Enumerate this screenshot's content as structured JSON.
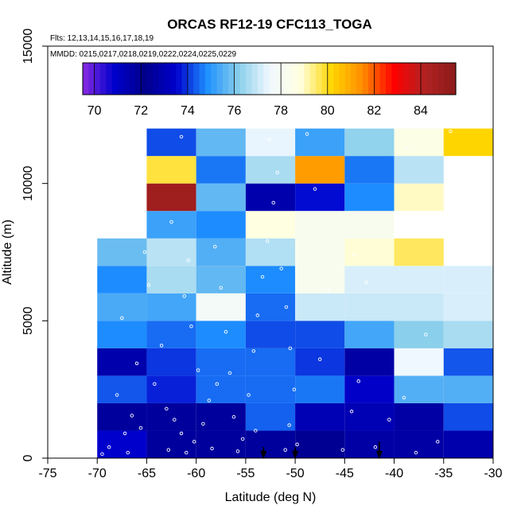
{
  "chart_data": {
    "type": "heatmap",
    "title": "ORCAS RF12-19 CFC113_TOGA",
    "subtitle_flights": "Flts: 12,13,14,15,16,17,18,19",
    "subtitle_dates": "MMDD: 0215,0217,0218,0219,0222,0224,0225,0229",
    "xlabel": "Latitude (deg N)",
    "ylabel": "Altitude (m)",
    "xlim": [
      -75,
      -30
    ],
    "ylim": [
      0,
      15000
    ],
    "x_ticks": [
      -75,
      -70,
      -65,
      -60,
      -55,
      -50,
      -45,
      -40,
      -35,
      -30
    ],
    "y_ticks": [
      0,
      5000,
      10000,
      15000
    ],
    "x_tick_labels": [
      "-75",
      "-70",
      "-65",
      "-60",
      "-55",
      "-50",
      "-45",
      "-40",
      "-35",
      "-30"
    ],
    "y_tick_labels": [
      "0",
      "5000",
      "10000",
      "15000"
    ],
    "colorbar": {
      "range": [
        69.5,
        85.5
      ],
      "ticks": [
        70,
        72,
        74,
        76,
        78,
        80,
        82,
        84
      ],
      "tick_labels": [
        "70",
        "72",
        "74",
        "76",
        "78",
        "80",
        "82",
        "84"
      ],
      "colors": [
        "#8a2be2",
        "#0000cd",
        "#00008b",
        "#0000cd",
        "#1e90ff",
        "#87ceeb",
        "#f0f8ff",
        "#ffffe0",
        "#ffd700",
        "#ff8c00",
        "#ff0000",
        "#b22222",
        "#8b1a1a"
      ]
    },
    "bin_width_deg": 5,
    "bin_height_m": 1000,
    "cells": [
      {
        "lat": -70,
        "alt": 0,
        "value": 73.5
      },
      {
        "lat": -65,
        "alt": 0,
        "value": 71.8
      },
      {
        "lat": -60,
        "alt": 0,
        "value": 71.8
      },
      {
        "lat": -55,
        "alt": 0,
        "value": 71.8
      },
      {
        "lat": -50,
        "alt": 0,
        "value": 72.0
      },
      {
        "lat": -45,
        "alt": 0,
        "value": 72.7
      },
      {
        "lat": -40,
        "alt": 0,
        "value": 72.7
      },
      {
        "lat": -35,
        "alt": 0,
        "value": 71.5
      },
      {
        "lat": -70,
        "alt": 1000,
        "value": 72.5
      },
      {
        "lat": -65,
        "alt": 1000,
        "value": 71.8
      },
      {
        "lat": -60,
        "alt": 1000,
        "value": 72.5
      },
      {
        "lat": -55,
        "alt": 1000,
        "value": 74.4
      },
      {
        "lat": -50,
        "alt": 1000,
        "value": 73.0
      },
      {
        "lat": -45,
        "alt": 1000,
        "value": 73.0
      },
      {
        "lat": -40,
        "alt": 1000,
        "value": 72.7
      },
      {
        "lat": -35,
        "alt": 1000,
        "value": 74.2
      },
      {
        "lat": -70,
        "alt": 2000,
        "value": 74.3
      },
      {
        "lat": -65,
        "alt": 2000,
        "value": 73.8
      },
      {
        "lat": -60,
        "alt": 2000,
        "value": 74.5
      },
      {
        "lat": -55,
        "alt": 2000,
        "value": 74.5
      },
      {
        "lat": -50,
        "alt": 2000,
        "value": 74.6
      },
      {
        "lat": -45,
        "alt": 2000,
        "value": 73.4
      },
      {
        "lat": -40,
        "alt": 2000,
        "value": 75.5
      },
      {
        "lat": -35,
        "alt": 2000,
        "value": 75.5
      },
      {
        "lat": -70,
        "alt": 3000,
        "value": 71.5
      },
      {
        "lat": -65,
        "alt": 3000,
        "value": 74.0
      },
      {
        "lat": -60,
        "alt": 3000,
        "value": 74.5
      },
      {
        "lat": -55,
        "alt": 3000,
        "value": 74.5
      },
      {
        "lat": -50,
        "alt": 3000,
        "value": 74.0
      },
      {
        "lat": -45,
        "alt": 3000,
        "value": 72.7
      },
      {
        "lat": -40,
        "alt": 3000,
        "value": 77.5
      },
      {
        "lat": -35,
        "alt": 3000,
        "value": 74.3
      },
      {
        "lat": -70,
        "alt": 4000,
        "value": 74.8
      },
      {
        "lat": -65,
        "alt": 4000,
        "value": 74.5
      },
      {
        "lat": -60,
        "alt": 4000,
        "value": 74.8
      },
      {
        "lat": -55,
        "alt": 4000,
        "value": 74.2
      },
      {
        "lat": -50,
        "alt": 4000,
        "value": 74.2
      },
      {
        "lat": -45,
        "alt": 4000,
        "value": 75.3
      },
      {
        "lat": -40,
        "alt": 4000,
        "value": 76.2
      },
      {
        "lat": -35,
        "alt": 4000,
        "value": 76.6
      },
      {
        "lat": -70,
        "alt": 5000,
        "value": 75.4
      },
      {
        "lat": -65,
        "alt": 5000,
        "value": 75.3
      },
      {
        "lat": -60,
        "alt": 5000,
        "value": 77.8
      },
      {
        "lat": -55,
        "alt": 5000,
        "value": 74.5
      },
      {
        "lat": -50,
        "alt": 5000,
        "value": 77.0
      },
      {
        "lat": -45,
        "alt": 5000,
        "value": 77.0
      },
      {
        "lat": -40,
        "alt": 5000,
        "value": 77.0
      },
      {
        "lat": -35,
        "alt": 5000,
        "value": 77.2
      },
      {
        "lat": -70,
        "alt": 6000,
        "value": 74.8
      },
      {
        "lat": -65,
        "alt": 6000,
        "value": 76.6
      },
      {
        "lat": -60,
        "alt": 6000,
        "value": 75.7
      },
      {
        "lat": -55,
        "alt": 6000,
        "value": 74.8
      },
      {
        "lat": -50,
        "alt": 6000,
        "value": 78.2
      },
      {
        "lat": -45,
        "alt": 6000,
        "value": 77.2
      },
      {
        "lat": -40,
        "alt": 6000,
        "value": 77.2
      },
      {
        "lat": -35,
        "alt": 6000,
        "value": 77.2
      },
      {
        "lat": -70,
        "alt": 7000,
        "value": 75.8
      },
      {
        "lat": -65,
        "alt": 7000,
        "value": 76.8
      },
      {
        "lat": -60,
        "alt": 7000,
        "value": 75.5
      },
      {
        "lat": -55,
        "alt": 7000,
        "value": 76.7
      },
      {
        "lat": -50,
        "alt": 7000,
        "value": 78.2
      },
      {
        "lat": -45,
        "alt": 7000,
        "value": 78.9
      },
      {
        "lat": -40,
        "alt": 7000,
        "value": 79.6
      },
      {
        "lat": -35,
        "alt": 7000,
        "value": null
      },
      {
        "lat": -70,
        "alt": 8000,
        "value": null
      },
      {
        "lat": -65,
        "alt": 8000,
        "value": 75.2
      },
      {
        "lat": -60,
        "alt": 8000,
        "value": 74.8
      },
      {
        "lat": -55,
        "alt": 8000,
        "value": 78.8
      },
      {
        "lat": -50,
        "alt": 8000,
        "value": 78.2
      },
      {
        "lat": -45,
        "alt": 8000,
        "value": 78.2
      },
      {
        "lat": -40,
        "alt": 8000,
        "value": null
      },
      {
        "lat": -35,
        "alt": 8000,
        "value": null
      },
      {
        "lat": -70,
        "alt": 9000,
        "value": null
      },
      {
        "lat": -65,
        "alt": 9000,
        "value": 84.8
      },
      {
        "lat": -60,
        "alt": 9000,
        "value": 75.7
      },
      {
        "lat": -55,
        "alt": 9000,
        "value": 71.5
      },
      {
        "lat": -50,
        "alt": 9000,
        "value": 73.6
      },
      {
        "lat": -45,
        "alt": 9000,
        "value": 74.8
      },
      {
        "lat": -40,
        "alt": 9000,
        "value": 79.0
      },
      {
        "lat": -35,
        "alt": 9000,
        "value": null
      },
      {
        "lat": -70,
        "alt": 10000,
        "value": null
      },
      {
        "lat": -65,
        "alt": 10000,
        "value": 79.8
      },
      {
        "lat": -60,
        "alt": 10000,
        "value": 74.6
      },
      {
        "lat": -55,
        "alt": 10000,
        "value": 76.6
      },
      {
        "lat": -50,
        "alt": 10000,
        "value": 81.2
      },
      {
        "lat": -45,
        "alt": 10000,
        "value": 74.6
      },
      {
        "lat": -40,
        "alt": 10000,
        "value": 76.8
      },
      {
        "lat": -35,
        "alt": 10000,
        "value": null
      },
      {
        "lat": -70,
        "alt": 11000,
        "value": null
      },
      {
        "lat": -65,
        "alt": 11000,
        "value": 74.2
      },
      {
        "lat": -60,
        "alt": 11000,
        "value": 75.7
      },
      {
        "lat": -55,
        "alt": 11000,
        "value": 77.4
      },
      {
        "lat": -50,
        "alt": 11000,
        "value": 75.2
      },
      {
        "lat": -45,
        "alt": 11000,
        "value": 76.3
      },
      {
        "lat": -40,
        "alt": 11000,
        "value": 78.6
      },
      {
        "lat": -35,
        "alt": 11000,
        "value": 80.2
      }
    ],
    "arrows": [
      {
        "lat": -53.2,
        "alt": 400,
        "tip_alt": 0
      },
      {
        "lat": -50.0,
        "alt": 400,
        "tip_alt": 0
      },
      {
        "lat": -41.5,
        "alt": 600,
        "tip_alt": 0
      }
    ],
    "sample_points": [
      {
        "lat": -69.5,
        "alt": 150
      },
      {
        "lat": -68.8,
        "alt": 400
      },
      {
        "lat": -67.2,
        "alt": 900
      },
      {
        "lat": -66.5,
        "alt": 1550
      },
      {
        "lat": -68.0,
        "alt": 2300
      },
      {
        "lat": -66.0,
        "alt": 3450
      },
      {
        "lat": -67.5,
        "alt": 5100
      },
      {
        "lat": -65.2,
        "alt": 7500
      },
      {
        "lat": -64.8,
        "alt": 6300
      },
      {
        "lat": -63.5,
        "alt": 4100
      },
      {
        "lat": -64.2,
        "alt": 2700
      },
      {
        "lat": -63.0,
        "alt": 1800
      },
      {
        "lat": -62.2,
        "alt": 1400
      },
      {
        "lat": -61.5,
        "alt": 900
      },
      {
        "lat": -62.8,
        "alt": 300
      },
      {
        "lat": -61.0,
        "alt": 200
      },
      {
        "lat": -60.2,
        "alt": 600
      },
      {
        "lat": -59.3,
        "alt": 1250
      },
      {
        "lat": -58.7,
        "alt": 2100
      },
      {
        "lat": -59.8,
        "alt": 3200
      },
      {
        "lat": -60.5,
        "alt": 4800
      },
      {
        "lat": -61.2,
        "alt": 5900
      },
      {
        "lat": -60.8,
        "alt": 7200
      },
      {
        "lat": -62.5,
        "alt": 8600
      },
      {
        "lat": -61.5,
        "alt": 11700
      },
      {
        "lat": -58.1,
        "alt": 7700
      },
      {
        "lat": -57.5,
        "alt": 6200
      },
      {
        "lat": -57.0,
        "alt": 4600
      },
      {
        "lat": -56.6,
        "alt": 3100
      },
      {
        "lat": -56.2,
        "alt": 1500
      },
      {
        "lat": -55.8,
        "alt": 250
      },
      {
        "lat": -55.3,
        "alt": 700
      },
      {
        "lat": -54.7,
        "alt": 2300
      },
      {
        "lat": -54.2,
        "alt": 3900
      },
      {
        "lat": -53.8,
        "alt": 5200
      },
      {
        "lat": -53.3,
        "alt": 6600
      },
      {
        "lat": -52.8,
        "alt": 7900
      },
      {
        "lat": -52.2,
        "alt": 9300
      },
      {
        "lat": -52.6,
        "alt": 11600
      },
      {
        "lat": -51.8,
        "alt": 10400
      },
      {
        "lat": -51.4,
        "alt": 6900
      },
      {
        "lat": -50.9,
        "alt": 5500
      },
      {
        "lat": -50.5,
        "alt": 4000
      },
      {
        "lat": -50.1,
        "alt": 2500
      },
      {
        "lat": -50.6,
        "alt": 1200
      },
      {
        "lat": -49.8,
        "alt": 500
      },
      {
        "lat": -48.8,
        "alt": 11800
      },
      {
        "lat": -47.5,
        "alt": 3600
      },
      {
        "lat": -46.6,
        "alt": 6100
      },
      {
        "lat": -45.2,
        "alt": 300
      },
      {
        "lat": -44.3,
        "alt": 1700
      },
      {
        "lat": -43.6,
        "alt": 2800
      },
      {
        "lat": -42.8,
        "alt": 6400
      },
      {
        "lat": -41.9,
        "alt": 400
      },
      {
        "lat": -40.5,
        "alt": 1400
      },
      {
        "lat": -39.6,
        "alt": 8400
      },
      {
        "lat": -38.7,
        "alt": 11300
      },
      {
        "lat": -37.8,
        "alt": 200
      },
      {
        "lat": -36.8,
        "alt": 4500
      },
      {
        "lat": -35.6,
        "alt": 600
      },
      {
        "lat": -34.3,
        "alt": 11900
      },
      {
        "lat": -66.9,
        "alt": 200
      },
      {
        "lat": -65.6,
        "alt": 1100
      },
      {
        "lat": -58.4,
        "alt": 350
      },
      {
        "lat": -57.9,
        "alt": 2700
      },
      {
        "lat": -54.0,
        "alt": 1000
      },
      {
        "lat": -51.0,
        "alt": 300
      },
      {
        "lat": -48.0,
        "alt": 9800
      },
      {
        "lat": -44.0,
        "alt": 7400
      },
      {
        "lat": -39.0,
        "alt": 2200
      }
    ]
  }
}
